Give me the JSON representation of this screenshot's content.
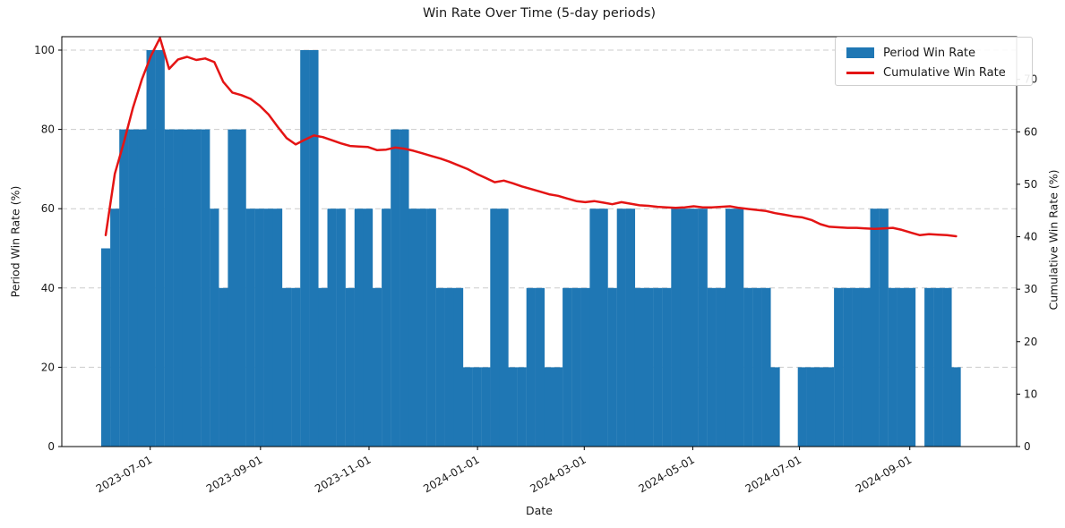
{
  "chart": {
    "title": "Win Rate Over Time (5-day periods)",
    "xlabel": "Date",
    "ylabel_left": "Period Win Rate (%)",
    "ylabel_right": "Cumulative Win Rate (%)"
  },
  "legend": {
    "items": [
      {
        "label": "Period Win Rate",
        "swatch": "bar-swatch",
        "color": "#1f77b4"
      },
      {
        "label": "Cumulative Win Rate",
        "swatch": "line-swatch",
        "color": "#e41414"
      }
    ]
  },
  "colors": {
    "bar": "#1f77b4",
    "line": "#e41414",
    "grid": "#cccccc",
    "spine": "#000000",
    "text": "#1a1a1a",
    "background": "#ffffff"
  },
  "chart_data": {
    "type": "bar",
    "title": "Win Rate Over Time (5-day periods)",
    "xlabel": "Date",
    "ylabel": "Period Win Rate (%)",
    "ylabel_right": "Cumulative Win Rate (%)",
    "x_unit": "consecutive 5-day periods",
    "x_tick_labels": [
      "2023-07-01",
      "2023-09-01",
      "2023-11-01",
      "2024-01-01",
      "2024-03-01",
      "2024-05-01",
      "2024-07-01",
      "2024-09-01"
    ],
    "x_tick_day_offsets": [
      0,
      62,
      123,
      184,
      244,
      305,
      365,
      427
    ],
    "ylim_left": [
      0,
      103.5
    ],
    "ylim_right": [
      0,
      78.2
    ],
    "left_ticks": [
      0,
      20,
      40,
      60,
      80,
      100
    ],
    "right_ticks": [
      0,
      10,
      20,
      30,
      40,
      50,
      60,
      70
    ],
    "grid": "horizontal dashed, left-axis ticks",
    "legend_position": "upper right",
    "series": [
      {
        "name": "Period Win Rate",
        "type": "bar",
        "axis": "left",
        "color": "#1f77b4",
        "values": [
          50,
          60,
          80,
          80,
          80,
          100,
          100,
          80,
          80,
          80,
          80,
          80,
          60,
          40,
          80,
          80,
          60,
          60,
          60,
          60,
          40,
          40,
          100,
          100,
          40,
          60,
          60,
          40,
          60,
          60,
          40,
          60,
          80,
          80,
          60,
          60,
          60,
          40,
          40,
          40,
          20,
          20,
          20,
          60,
          60,
          20,
          20,
          40,
          40,
          20,
          20,
          40,
          40,
          40,
          60,
          60,
          40,
          60,
          60,
          40,
          40,
          40,
          40,
          60,
          60,
          60,
          60,
          40,
          40,
          60,
          60,
          40,
          40,
          40,
          20,
          0,
          0,
          20,
          20,
          20,
          20,
          40,
          40,
          40,
          40,
          60,
          60,
          40,
          40,
          40,
          0,
          40,
          40,
          40,
          20
        ]
      },
      {
        "name": "Cumulative Win Rate",
        "type": "line",
        "axis": "right",
        "color": "#e41414",
        "values": [
          40.3,
          52,
          58,
          64.5,
          70,
          74.5,
          77.9,
          72,
          73.8,
          74.3,
          73.7,
          74,
          73.3,
          69.5,
          67.5,
          67,
          66.3,
          65,
          63.3,
          61,
          58.8,
          57.6,
          58.5,
          59.3,
          59,
          58.4,
          57.8,
          57.3,
          57.2,
          57.1,
          56.5,
          56.6,
          57,
          56.8,
          56.4,
          55.9,
          55.4,
          54.9,
          54.3,
          53.6,
          52.9,
          52,
          51.2,
          50.4,
          50.7,
          50.2,
          49.6,
          49.1,
          48.6,
          48.1,
          47.8,
          47.3,
          46.8,
          46.6,
          46.8,
          46.5,
          46.2,
          46.6,
          46.3,
          46,
          45.9,
          45.7,
          45.6,
          45.5,
          45.6,
          45.8,
          45.6,
          45.6,
          45.7,
          45.8,
          45.5,
          45.3,
          45.1,
          44.9,
          44.5,
          44.2,
          43.9,
          43.7,
          43.2,
          42.4,
          41.9,
          41.8,
          41.7,
          41.7,
          41.6,
          41.5,
          41.6,
          41.7,
          41.3,
          40.8,
          40.3,
          40.5,
          40.4,
          40.3,
          40.1
        ]
      }
    ]
  }
}
